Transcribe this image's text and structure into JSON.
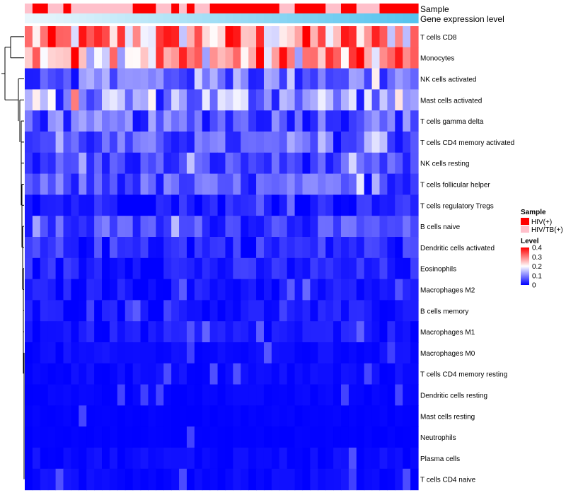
{
  "chart_data": {
    "type": "heatmap",
    "annotation_tracks": [
      "Sample",
      "Gene expression level"
    ],
    "rows": [
      "T cells CD8",
      "Monocytes",
      "NK cells activated",
      "Mast cells activated",
      "T cells gamma delta",
      "T cells CD4 memory activated",
      "NK cells resting",
      "T cells follicular helper",
      "T cells regulatory  Tregs",
      "B cells naive",
      "Dendritic cells activated",
      "Eosinophils",
      "Macrophages M2",
      "B cells memory",
      "Macrophages M1",
      "Macrophages M0",
      "T cells CD4 memory resting",
      "Dendritic cells resting",
      "Mast cells resting",
      "Neutrophils",
      "Plasma cells",
      "T cells CD4 naive"
    ],
    "sample_groups": [
      "P",
      "R",
      "R",
      "P",
      "P",
      "R",
      "P",
      "P",
      "P",
      "P",
      "P",
      "P",
      "P",
      "P",
      "R",
      "R",
      "R",
      "P",
      "P",
      "R",
      "P",
      "R",
      "P",
      "P",
      "R",
      "R",
      "R",
      "R",
      "R",
      "R",
      "R",
      "R",
      "R",
      "P",
      "P",
      "R",
      "R",
      "R",
      "R",
      "P",
      "P",
      "R",
      "R",
      "P",
      "P",
      "P",
      "R",
      "R",
      "R",
      "R",
      "R"
    ],
    "color_scale": {
      "label": "Level",
      "min": 0,
      "max": 0.4,
      "ticks": [
        0.4,
        0.3,
        0.2,
        0.1,
        0
      ],
      "colors": [
        "#0000ff",
        "#ffffff",
        "#ff0000"
      ]
    },
    "sample_legend": {
      "title": "Sample",
      "entries": [
        {
          "key": "R",
          "label": "HIV(+)",
          "color": "#ff0000"
        },
        {
          "key": "P",
          "label": "HIV/TB(+)",
          "color": "#ffc0cb"
        }
      ]
    },
    "expression_gradient": [
      "#eaf6fc",
      "#55c3ee"
    ],
    "row_means": [
      0.31,
      0.3,
      0.09,
      0.12,
      0.07,
      0.06,
      0.05,
      0.06,
      0.03,
      0.05,
      0.04,
      0.03,
      0.02,
      0.02,
      0.02,
      0.01,
      0.01,
      0.005,
      0.003,
      0.002,
      0.01,
      0.01
    ]
  }
}
